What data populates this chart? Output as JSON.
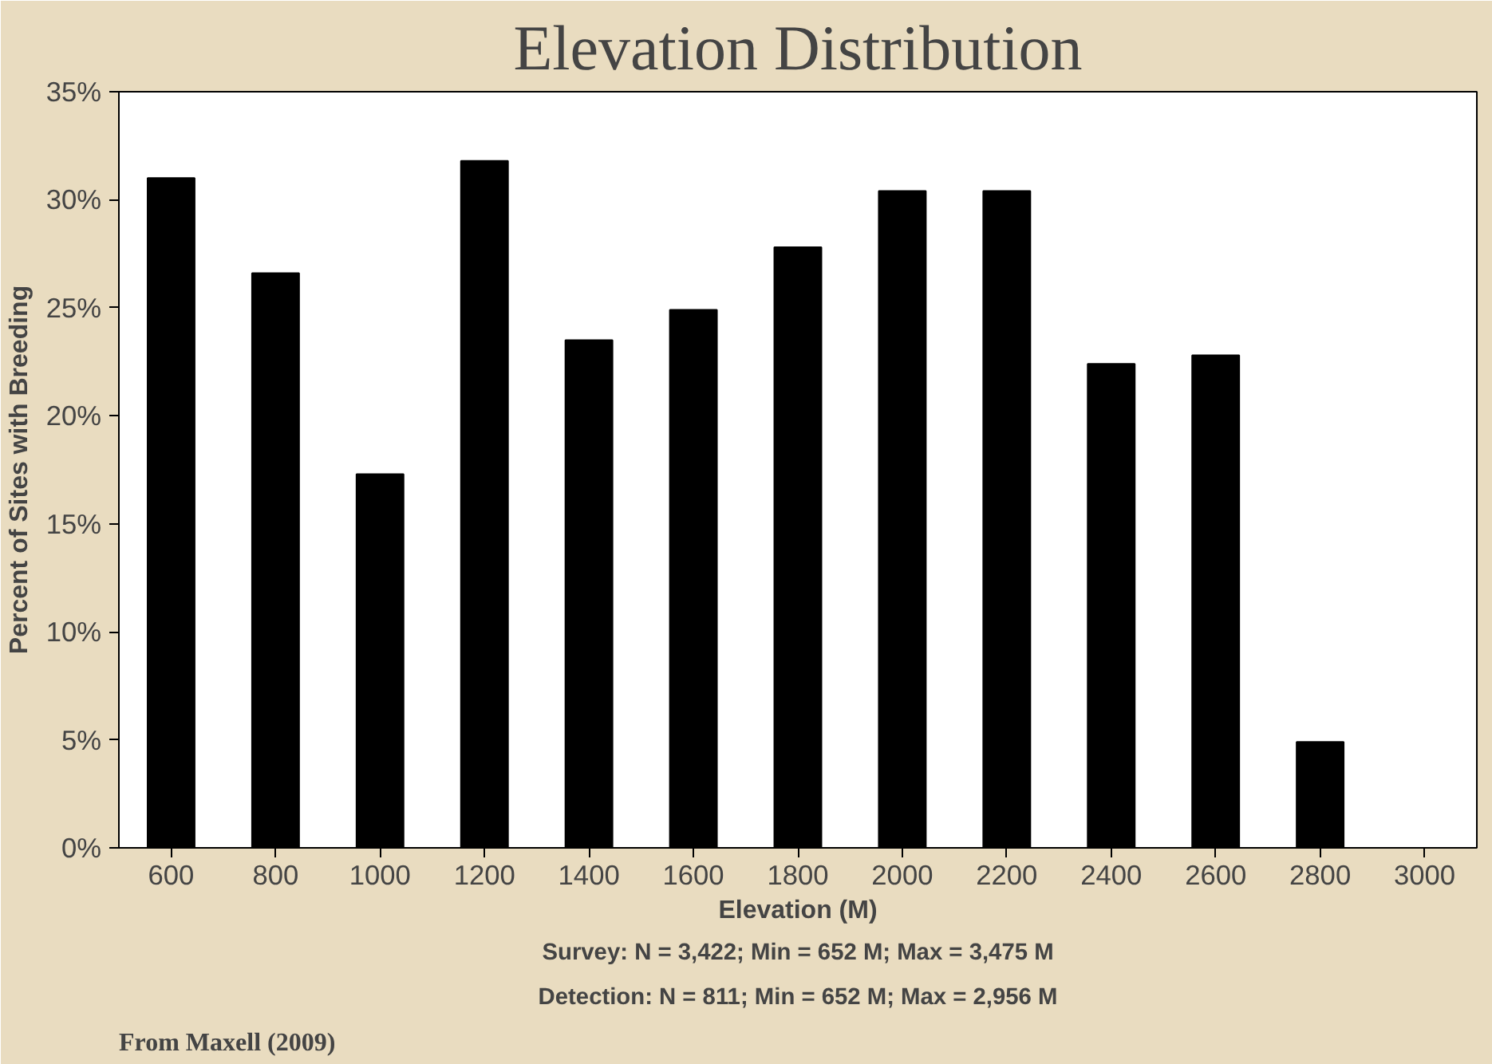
{
  "chart_data": {
    "type": "bar",
    "title": "Elevation Distribution",
    "xlabel": "Elevation (M)",
    "ylabel": "Percent of Sites with Breeding",
    "categories": [
      "600",
      "800",
      "1000",
      "1200",
      "1400",
      "1600",
      "1800",
      "2000",
      "2200",
      "2400",
      "2600",
      "2800",
      "3000"
    ],
    "values": [
      31.0,
      26.6,
      17.3,
      31.8,
      23.5,
      24.9,
      27.8,
      30.4,
      30.4,
      22.4,
      22.8,
      4.9,
      0
    ],
    "color": "#000000",
    "ylim": [
      0,
      35
    ],
    "yticks": [
      {
        "value": 0,
        "label": "0%"
      },
      {
        "value": 5,
        "label": "5%"
      },
      {
        "value": 10,
        "label": "10%"
      },
      {
        "value": 15,
        "label": "15%"
      },
      {
        "value": 20,
        "label": "20%"
      },
      {
        "value": 25,
        "label": "25%"
      },
      {
        "value": 30,
        "label": "30%"
      },
      {
        "value": 35,
        "label": "35%"
      }
    ],
    "grid": false,
    "legend": false,
    "annotations": [
      "Survey: N = 3,422; Min = 652 M; Max = 3,475 M",
      "Detection: N = 811; Min = 652 M; Max = 2,956 M",
      "From Maxell (2009)"
    ]
  }
}
